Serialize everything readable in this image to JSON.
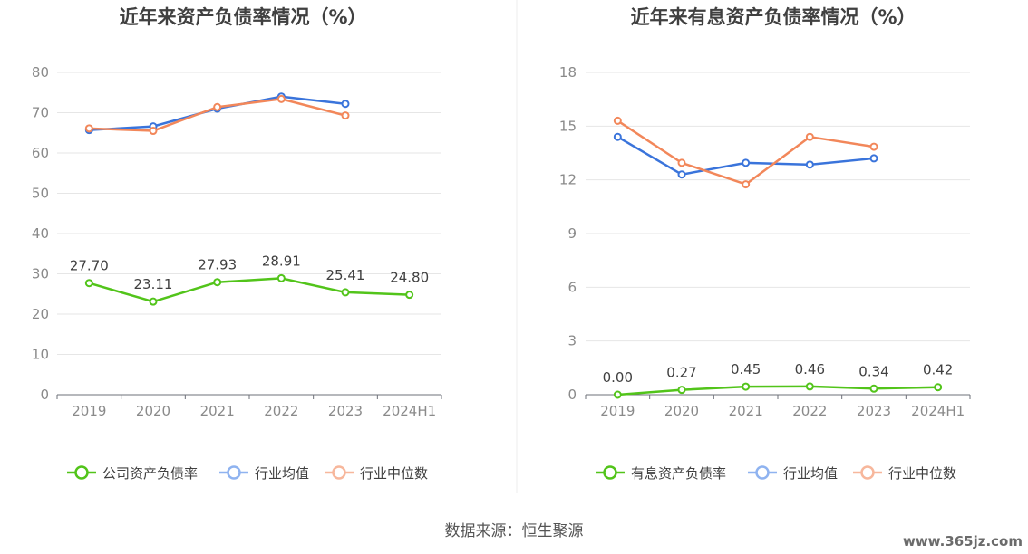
{
  "source_text": "数据来源：恒生聚源",
  "watermark": "www.365jz.com",
  "colors": {
    "company": "#52c41a",
    "avg": "#3a74db",
    "median": "#f2875a",
    "avg_legend": "#8fb3f0",
    "median_legend": "#f7b79c"
  },
  "chart_data": [
    {
      "type": "line",
      "title": "近年来资产负债率情况（%）",
      "categories": [
        "2019",
        "2020",
        "2021",
        "2022",
        "2023",
        "2024H1"
      ],
      "ylim": [
        0,
        80
      ],
      "yticks": [
        0,
        10,
        20,
        30,
        40,
        50,
        60,
        70,
        80
      ],
      "grid": true,
      "legend_position": "bottom",
      "series": [
        {
          "name": "公司资产负债率",
          "key": "company",
          "values": [
            27.7,
            23.11,
            27.93,
            28.91,
            25.41,
            24.8
          ],
          "labels": [
            "27.70",
            "23.11",
            "27.93",
            "28.91",
            "25.41",
            "24.80"
          ]
        },
        {
          "name": "行业均值",
          "key": "avg",
          "values": [
            65.7,
            66.6,
            71.0,
            74.0,
            72.2,
            null
          ]
        },
        {
          "name": "行业中位数",
          "key": "median",
          "values": [
            66.1,
            65.5,
            71.4,
            73.4,
            69.3,
            null
          ]
        }
      ]
    },
    {
      "type": "line",
      "title": "近年来有息资产负债率情况（%）",
      "categories": [
        "2019",
        "2020",
        "2021",
        "2022",
        "2023",
        "2024H1"
      ],
      "ylim": [
        0,
        18
      ],
      "yticks": [
        0,
        3,
        6,
        9,
        12,
        15,
        18
      ],
      "grid": true,
      "legend_position": "bottom",
      "series": [
        {
          "name": "有息资产负债率",
          "key": "company",
          "values": [
            0.0,
            0.27,
            0.45,
            0.46,
            0.34,
            0.42
          ],
          "labels": [
            "0.00",
            "0.27",
            "0.45",
            "0.46",
            "0.34",
            "0.42"
          ]
        },
        {
          "name": "行业均值",
          "key": "avg",
          "values": [
            14.4,
            12.3,
            12.95,
            12.85,
            13.2,
            null
          ]
        },
        {
          "name": "行业中位数",
          "key": "median",
          "values": [
            15.3,
            12.95,
            11.75,
            14.4,
            13.85,
            null
          ]
        }
      ]
    }
  ]
}
